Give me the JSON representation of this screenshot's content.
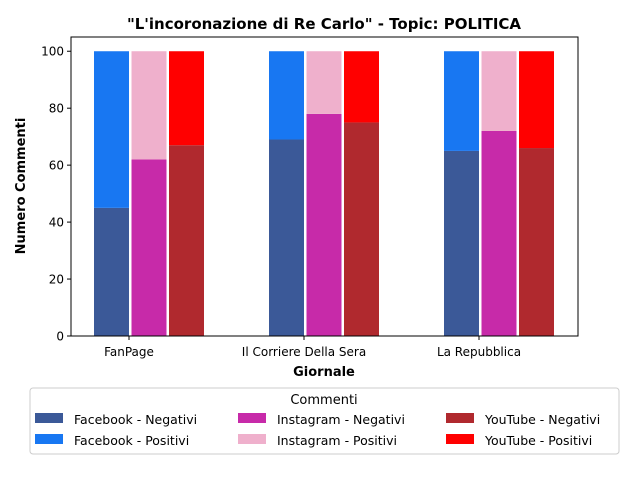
{
  "chart_data": {
    "type": "bar",
    "title": "\"L'incoronazione di Re Carlo\" - Topic: POLITICA",
    "xlabel": "Giornale",
    "ylabel": "Numero Commenti",
    "ylim": [
      0,
      105
    ],
    "yticks": [
      0,
      20,
      40,
      60,
      80,
      100
    ],
    "grid": false,
    "categories": [
      "FanPage",
      "Il Corriere Della Sera",
      "La Repubblica"
    ],
    "stacks": [
      {
        "platform": "Facebook",
        "negative": [
          45,
          69,
          65
        ],
        "positive": [
          55,
          31,
          35
        ],
        "neg_color": "#3b5998",
        "pos_color": "#1877f2"
      },
      {
        "platform": "Instagram",
        "negative": [
          62,
          78,
          72
        ],
        "positive": [
          38,
          22,
          28
        ],
        "neg_color": "#c72aa9",
        "pos_color": "#efb0cc"
      },
      {
        "platform": "YouTube",
        "negative": [
          67,
          75,
          66
        ],
        "positive": [
          33,
          25,
          34
        ],
        "neg_color": "#b0292e",
        "pos_color": "#ff0000"
      }
    ],
    "legend": {
      "title": "Commenti",
      "placement": "bottom-center",
      "entries": [
        {
          "label": "Facebook - Negativi",
          "color": "#3b5998"
        },
        {
          "label": "Instagram - Negativi",
          "color": "#c72aa9"
        },
        {
          "label": "YouTube - Negativi",
          "color": "#b0292e"
        },
        {
          "label": "Facebook - Positivi",
          "color": "#1877f2"
        },
        {
          "label": "Instagram - Positivi",
          "color": "#efb0cc"
        },
        {
          "label": "YouTube - Positivi",
          "color": "#ff0000"
        }
      ]
    }
  }
}
